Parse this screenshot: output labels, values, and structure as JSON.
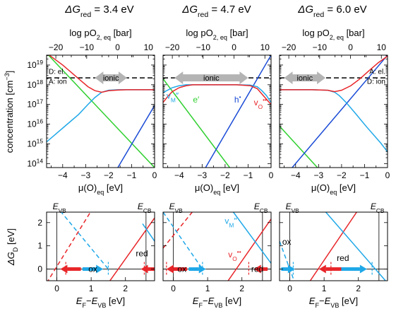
{
  "colors": {
    "blue": "#1a4bd6",
    "cyan": "#1fa8e8",
    "red": "#e8262a",
    "green": "#30d030",
    "gray": "#b4b4b4",
    "black": "#000000"
  },
  "chart_data": [
    {
      "type": "line",
      "panel": "top-left",
      "title": "ΔGred = 3.4 eV",
      "title_main": "ΔG",
      "title_sub": "red",
      "title_value": "= 3.4 eV",
      "xlabel": "μ(O)eq [eV]",
      "ylabel": "concentration [cm⁻³]",
      "top_xlabel": "log pO2, eq [bar]",
      "xlim": [
        -4.7,
        0
      ],
      "top_xlim": [
        -23,
        12
      ],
      "ylim_log10": [
        13.8,
        19.5
      ],
      "xticks": [
        -4,
        -3,
        -2,
        -1,
        0
      ],
      "top_xticks": [
        -20,
        -10,
        0,
        10
      ],
      "yticks_log10": [
        14,
        15,
        16,
        17,
        18,
        19
      ],
      "annotations": [
        "ionic",
        "D: el.",
        "A: ion"
      ],
      "dashed_level_log10": 18.35,
      "ionic_arrow": {
        "from": -2.6,
        "to": -1.2
      },
      "series": [
        {
          "color": "green",
          "x": [
            -4.7,
            0
          ],
          "y_log10": [
            19.6,
            13.8
          ]
        },
        {
          "color": "blue",
          "x": [
            -1.6,
            0
          ],
          "y_log10": [
            13.8,
            16.95
          ]
        },
        {
          "color": "cyan",
          "x": [
            -4.7,
            -4.3,
            -3.8,
            -3.3,
            -2.9,
            -2.6,
            -2.3,
            -2.0,
            -1.6,
            -1.2,
            -0.6,
            0
          ],
          "y_log10": [
            15.1,
            15.5,
            16.0,
            16.5,
            17.0,
            17.35,
            17.62,
            17.72,
            17.75,
            17.75,
            17.75,
            17.75
          ]
        },
        {
          "color": "red",
          "x": [
            -4.7,
            -4.0,
            -3.2,
            -2.9,
            -2.6,
            -2.3,
            -2.0,
            -1.6,
            -1.2,
            -0.6,
            0
          ],
          "y_log10": [
            19.6,
            19.0,
            18.2,
            17.9,
            17.7,
            17.62,
            17.7,
            17.73,
            17.75,
            17.75,
            17.75
          ]
        }
      ]
    },
    {
      "type": "line",
      "panel": "top-middle",
      "title": "ΔGred = 4.7 eV",
      "title_main": "ΔG",
      "title_sub": "red",
      "title_value": "= 4.7 eV",
      "xlabel": "μ(O)eq [eV]",
      "top_xlabel": "log pO2, eq [bar]",
      "xlim": [
        -4.7,
        0
      ],
      "top_xlim": [
        -23,
        12
      ],
      "ylim_log10": [
        13.8,
        19.5
      ],
      "xticks": [
        -4,
        -3,
        -2,
        -1,
        0
      ],
      "top_xticks": [
        -20,
        -10,
        0,
        10
      ],
      "yticks_log10": [
        14,
        15,
        16,
        17,
        18,
        19
      ],
      "annotations": [
        "ionic",
        "vM″",
        "e′",
        "h•",
        "vO••"
      ],
      "dashed_level_log10": 18.35,
      "ionic_arrow": {
        "from": -4.2,
        "to": -1.0
      },
      "series": [
        {
          "color": "green",
          "x": [
            -4.7,
            -1.8
          ],
          "y_log10": [
            18.3,
            13.8
          ]
        },
        {
          "color": "blue",
          "x": [
            -2.85,
            0
          ],
          "y_log10": [
            13.8,
            19.5
          ]
        },
        {
          "color": "cyan",
          "x": [
            -4.7,
            -4.3,
            -4.0,
            -3.7,
            -3.4,
            -2.5,
            -1.5,
            -0.9,
            -0.6,
            -0.4,
            -0.2,
            0
          ],
          "y_log10": [
            17.6,
            17.85,
            17.95,
            18.0,
            18.0,
            18.0,
            18.0,
            17.98,
            17.9,
            17.7,
            17.45,
            17.1
          ]
        },
        {
          "color": "red",
          "x": [
            -4.7,
            -4.5,
            -4.3,
            -4.0,
            -3.7,
            -3.4,
            -2.5,
            -1.5,
            -0.9,
            -0.6,
            -0.3,
            0
          ],
          "y_log10": [
            17.1,
            17.4,
            17.65,
            17.85,
            17.95,
            18.0,
            18.0,
            18.0,
            17.95,
            17.8,
            17.4,
            17.0
          ]
        }
      ]
    },
    {
      "type": "line",
      "panel": "top-right",
      "title": "ΔGred = 6.0 eV",
      "title_main": "ΔG",
      "title_sub": "red",
      "title_value": "= 6.0 eV",
      "xlabel": "μ(O)eq [eV]",
      "top_xlabel": "log pO2, eq [bar]",
      "xlim": [
        -4.7,
        0
      ],
      "top_xlim": [
        -23,
        12
      ],
      "ylim_log10": [
        13.8,
        19.5
      ],
      "xticks": [
        -4,
        -3,
        -2,
        -1,
        0
      ],
      "top_xticks": [
        -20,
        -10,
        0,
        10
      ],
      "yticks_log10": [
        14,
        15,
        16,
        17,
        18,
        19
      ],
      "annotations": [
        "ionic",
        "A: el.",
        "D: ion"
      ],
      "dashed_level_log10": 18.35,
      "ionic_arrow": {
        "from": -4.5,
        "to": -2.7
      },
      "series": [
        {
          "color": "green",
          "x": [
            -4.7,
            -3.05
          ],
          "y_log10": [
            15.9,
            13.8
          ]
        },
        {
          "color": "blue",
          "x": [
            -4.15,
            0
          ],
          "y_log10": [
            13.8,
            19.5
          ]
        },
        {
          "color": "cyan",
          "x": [
            -4.7,
            -4.0,
            -3.3,
            -2.6,
            -2.3,
            -2.1,
            -1.8,
            -1.4,
            -0.9,
            -0.3,
            0
          ],
          "y_log10": [
            17.75,
            17.75,
            17.75,
            17.72,
            17.62,
            17.45,
            17.1,
            16.55,
            15.85,
            15.05,
            14.6
          ]
        },
        {
          "color": "red",
          "x": [
            -4.7,
            -4.0,
            -3.3,
            -2.6,
            -2.3,
            -2.0,
            -1.6,
            -1.2,
            -0.8,
            -0.4,
            0
          ],
          "y_log10": [
            17.75,
            17.75,
            17.75,
            17.72,
            17.65,
            17.72,
            17.95,
            18.3,
            18.72,
            19.12,
            19.45
          ]
        }
      ]
    },
    {
      "type": "line",
      "panel": "bottom-left",
      "xlabel": "EF−EVB [eV]",
      "ylabel": "ΔGD [eV]",
      "xlim": [
        -0.3,
        2.85
      ],
      "ylim": [
        -0.5,
        2.45
      ],
      "xticks": [
        0,
        1,
        2
      ],
      "yticks": [
        0,
        1,
        2
      ],
      "annotations": [
        "EVB",
        "ECB",
        "ox",
        "red"
      ],
      "evb": 0,
      "ecb": 2.6,
      "arrows": [
        {
          "color": "red",
          "from": 0.7,
          "to": 0.1
        },
        {
          "color": "cyan",
          "from": 0.75,
          "to": 1.35
        },
        {
          "color": "red",
          "from": 2.85,
          "to": 2.45
        }
      ],
      "markers": [
        {
          "color": "red",
          "x": 0.26
        },
        {
          "color": "cyan",
          "x": 1.5
        },
        {
          "color": "red",
          "x": 2.55
        }
      ],
      "series": [
        {
          "color": "red",
          "dashed": true,
          "x": [
            -0.3,
            1.0
          ],
          "y": [
            -0.6,
            2.5
          ]
        },
        {
          "color": "cyan",
          "dashed": true,
          "x": [
            0.1,
            1.5
          ],
          "y": [
            2.5,
            0.0
          ]
        },
        {
          "color": "red",
          "dashed": false,
          "x": [
            1.5,
            2.85
          ],
          "y": [
            -0.6,
            2.2
          ]
        },
        {
          "color": "cyan",
          "dashed": false,
          "x": [
            2.5,
            2.85
          ],
          "y": [
            1.95,
            1.2
          ]
        }
      ]
    },
    {
      "type": "line",
      "panel": "bottom-middle",
      "xlabel": "EF−EVB [eV]",
      "xlim": [
        -0.3,
        2.85
      ],
      "ylim": [
        -0.5,
        2.45
      ],
      "xticks": [
        0,
        1,
        2
      ],
      "yticks": [
        0,
        1,
        2
      ],
      "annotations": [
        "EVB",
        "ECB",
        "ox",
        "red",
        "vM″",
        "vO••"
      ],
      "evb": 0,
      "ecb": 2.6,
      "arrows": [
        {
          "color": "red",
          "from": 0.4,
          "to": -0.2
        },
        {
          "color": "cyan",
          "from": 0.45,
          "to": 0.95
        },
        {
          "color": "red",
          "from": 2.75,
          "to": 2.35
        }
      ],
      "markers": [
        {
          "color": "red",
          "x": -0.2
        },
        {
          "color": "cyan",
          "x": 0.85
        },
        {
          "color": "red",
          "x": 2.2
        }
      ],
      "series": [
        {
          "color": "red",
          "dashed": true,
          "x": [
            -0.3,
            0.55
          ],
          "y": [
            0.9,
            2.45
          ]
        },
        {
          "color": "cyan",
          "dashed": true,
          "x": [
            -0.3,
            0.85
          ],
          "y": [
            2.45,
            0.0
          ]
        },
        {
          "color": "red",
          "dashed": false,
          "x": [
            1.55,
            2.85
          ],
          "y": [
            -0.6,
            2.15
          ]
        },
        {
          "color": "cyan",
          "dashed": false,
          "x": [
            1.75,
            2.85
          ],
          "y": [
            2.45,
            0.25
          ]
        }
      ]
    },
    {
      "type": "line",
      "panel": "bottom-right",
      "xlabel": "EF−EVB [eV]",
      "xlim": [
        -0.3,
        2.85
      ],
      "ylim": [
        -0.5,
        2.45
      ],
      "xticks": [
        0,
        1,
        2
      ],
      "yticks": [
        0,
        1,
        2
      ],
      "annotations": [
        "EVB",
        "ECB",
        "ox",
        "red"
      ],
      "evb": 0,
      "ecb": 2.6,
      "arrows": [
        {
          "color": "red",
          "from": 1.55,
          "to": 0.85
        },
        {
          "color": "cyan",
          "from": 1.5,
          "to": 2.25
        },
        {
          "color": "cyan",
          "from": -0.25,
          "to": 0.15
        }
      ],
      "markers": [
        {
          "color": "cyan",
          "x": 0.1
        },
        {
          "color": "red",
          "x": 1.2
        },
        {
          "color": "cyan",
          "x": 2.4
        }
      ],
      "series": [
        {
          "color": "cyan",
          "dashed": true,
          "x": [
            -0.3,
            0.15
          ],
          "y": [
            1.2,
            -0.6
          ]
        },
        {
          "color": "red",
          "dashed": false,
          "x": [
            0.55,
            1.95
          ],
          "y": [
            -0.6,
            2.45
          ]
        },
        {
          "color": "cyan",
          "dashed": false,
          "x": [
            1.05,
            2.85
          ],
          "y": [
            2.45,
            -0.6
          ]
        }
      ]
    }
  ]
}
